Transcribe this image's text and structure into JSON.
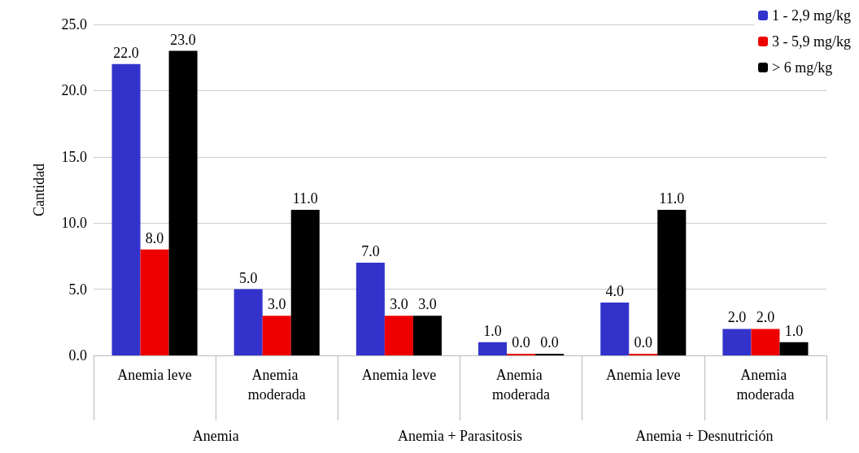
{
  "chart_data": {
    "type": "bar",
    "ylabel": "Cantidad",
    "categories": [
      "Anemia leve",
      "Anemia moderada",
      "Anemia leve",
      "Anemia moderada",
      "Anemia leve",
      "Anemia moderada"
    ],
    "annotations": [
      "Anemia",
      "Anemia + Parasitosis",
      "Anemia + Desnutrición"
    ],
    "series": [
      {
        "name": "1 - 2,9 mg/kg",
        "color": "#3333cc",
        "values": [
          22,
          5,
          7,
          1,
          4,
          2
        ],
        "value_labels": [
          "22.0",
          "5.0",
          "7.0",
          "1.0",
          "4.0",
          "2.0"
        ]
      },
      {
        "name": "3 - 5,9 mg/kg",
        "color": "#ee0000",
        "values": [
          8,
          3,
          3,
          0,
          0,
          2
        ],
        "value_labels": [
          "8.0",
          "3.0",
          "3.0",
          "0.0",
          "0.0",
          "2.0"
        ]
      },
      {
        "name": "> 6 mg/kg",
        "color": "#000000",
        "values": [
          23,
          11,
          3,
          0,
          11,
          1
        ],
        "value_labels": [
          "23.0",
          "11.0",
          "3.0",
          "0.0",
          "11.0",
          "1.0"
        ]
      }
    ],
    "ylim": [
      0,
      25
    ],
    "yticks": [
      {
        "value": 0,
        "label": "0.0"
      },
      {
        "value": 5,
        "label": "5.0"
      },
      {
        "value": 10,
        "label": "10.0"
      },
      {
        "value": 15,
        "label": "15.0"
      },
      {
        "value": 20,
        "label": "20.0"
      },
      {
        "value": 25,
        "label": "25.0"
      }
    ],
    "grid": "y",
    "legend": "top right"
  }
}
